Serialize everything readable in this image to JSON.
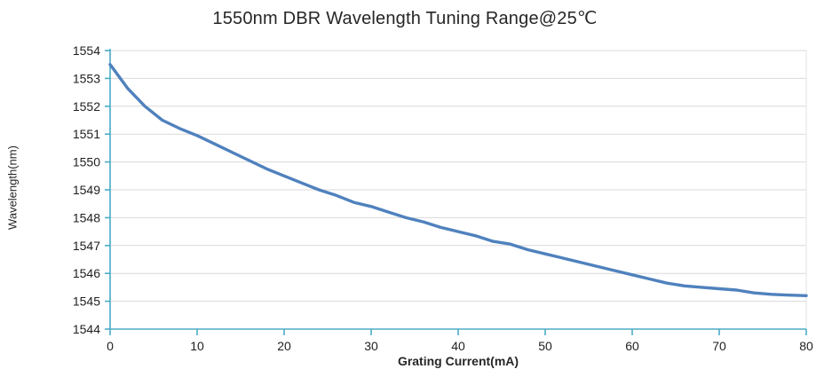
{
  "chart": {
    "colors": {
      "line": "#4f81bd",
      "axis": "#4bacc6",
      "grid": "#d9d9d9",
      "plot_border": "#e3e3e3",
      "text": "#262626",
      "background": "#ffffff"
    }
  },
  "chart_data": {
    "type": "line",
    "title": "1550nm DBR Wavelength Tuning Range@25℃",
    "xlabel": "Grating Current(mA)",
    "ylabel": "Wavelength(nm)",
    "xlim": [
      0,
      80
    ],
    "ylim": [
      1544,
      1554
    ],
    "x_ticks": [
      0,
      10,
      20,
      30,
      40,
      50,
      60,
      70,
      80
    ],
    "y_ticks": [
      1544,
      1545,
      1546,
      1547,
      1548,
      1549,
      1550,
      1551,
      1552,
      1553,
      1554
    ],
    "grid": "horizontal-only",
    "legend": "none",
    "series": [
      {
        "name": "wavelength",
        "x": [
          0,
          2,
          4,
          6,
          8,
          10,
          12,
          14,
          16,
          18,
          20,
          22,
          24,
          26,
          28,
          30,
          32,
          34,
          36,
          38,
          40,
          42,
          44,
          46,
          48,
          50,
          52,
          54,
          56,
          58,
          60,
          62,
          64,
          66,
          68,
          70,
          72,
          74,
          76,
          78,
          80
        ],
        "y": [
          1553.5,
          1552.65,
          1552.0,
          1551.5,
          1551.2,
          1550.95,
          1550.65,
          1550.35,
          1550.05,
          1549.75,
          1549.5,
          1549.25,
          1549.0,
          1548.8,
          1548.55,
          1548.4,
          1548.2,
          1548.0,
          1547.85,
          1547.65,
          1547.5,
          1547.35,
          1547.15,
          1547.05,
          1546.85,
          1546.7,
          1546.55,
          1546.4,
          1546.25,
          1546.1,
          1545.95,
          1545.8,
          1545.65,
          1545.55,
          1545.5,
          1545.45,
          1545.4,
          1545.3,
          1545.25,
          1545.22,
          1545.2
        ]
      }
    ]
  }
}
